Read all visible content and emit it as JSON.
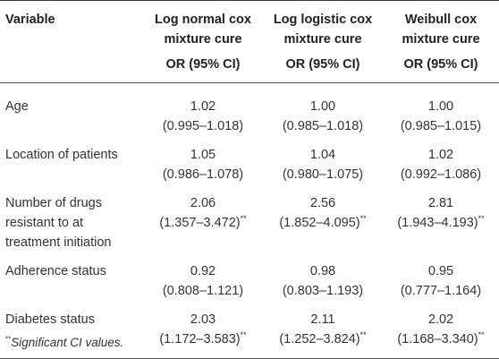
{
  "table": {
    "columns": [
      {
        "line1": "Variable",
        "line2": ""
      },
      {
        "line1": "Log normal cox mixture cure",
        "line2": "OR (95% CI)"
      },
      {
        "line1": "Log logistic cox mixture cure",
        "line2": "OR (95% CI)"
      },
      {
        "line1": "Weibull cox mixture cure",
        "line2": "OR (95% CI)"
      }
    ],
    "rows": [
      {
        "variable": "Age",
        "values": [
          {
            "or": "1.02",
            "ci": "(0.995–1.018)",
            "sig": ""
          },
          {
            "or": "1.00",
            "ci": "(0.985–1.018)",
            "sig": ""
          },
          {
            "or": "1.00",
            "ci": "(0.985–1.015)",
            "sig": ""
          }
        ]
      },
      {
        "variable": "Location of patients",
        "values": [
          {
            "or": "1.05",
            "ci": "(0.986–1.078)",
            "sig": ""
          },
          {
            "or": "1.04",
            "ci": "(0.980–1.075)",
            "sig": ""
          },
          {
            "or": "1.02",
            "ci": "(0.992–1.086)",
            "sig": ""
          }
        ]
      },
      {
        "variable": "Number of drugs resistant to at treatment initiation",
        "values": [
          {
            "or": "2.06",
            "ci": "(1.357–3.472)",
            "sig": "**"
          },
          {
            "or": "2.56",
            "ci": "(1.852–4.095)",
            "sig": "**"
          },
          {
            "or": "2.81",
            "ci": "(1.943–4.193)",
            "sig": "**"
          }
        ]
      },
      {
        "variable": "Adherence status",
        "values": [
          {
            "or": "0.92",
            "ci": "(0.808–1.121)",
            "sig": ""
          },
          {
            "or": "0.98",
            "ci": "(0.803–1.193)",
            "sig": ""
          },
          {
            "or": "0.95",
            "ci": "(0.777–1.164)",
            "sig": ""
          }
        ]
      },
      {
        "variable": "Diabetes status",
        "values": [
          {
            "or": "2.03",
            "ci": "(1.172–3.583)",
            "sig": "**"
          },
          {
            "or": "2.11",
            "ci": "(1.252–3.824)",
            "sig": "**"
          },
          {
            "or": "2.02",
            "ci": "(1.168–3.340)",
            "sig": "**"
          }
        ]
      }
    ]
  },
  "footnote": {
    "marker": "**",
    "text": "Significant CI values."
  }
}
